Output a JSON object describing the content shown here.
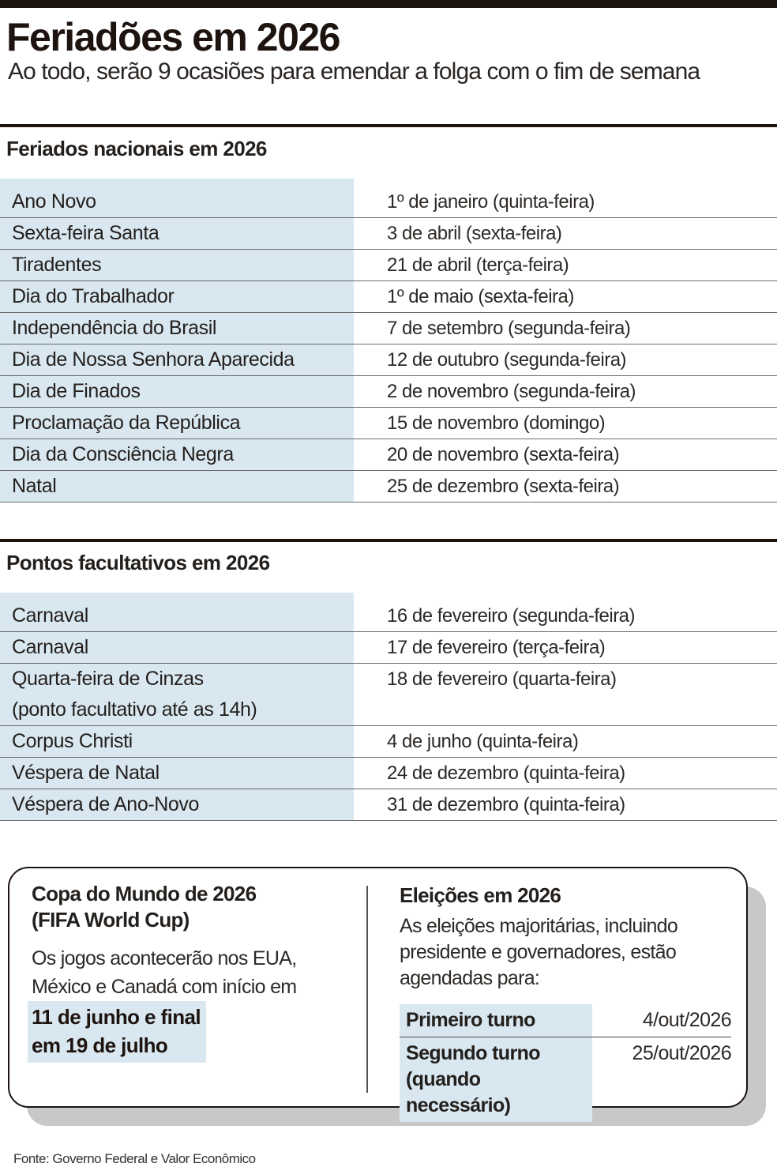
{
  "header": {
    "title": "Feriadões em 2026",
    "subtitle": "Ao todo, serão 9 ocasiões para emendar a folga com o fim de semana"
  },
  "national": {
    "title": "Feriados nacionais em 2026",
    "rows": [
      {
        "name": "Ano Novo",
        "date": "1º de janeiro (quinta-feira)"
      },
      {
        "name": "Sexta-feira Santa",
        "date": "3 de abril (sexta-feira)"
      },
      {
        "name": "Tiradentes",
        "date": "21 de abril (terça-feira)"
      },
      {
        "name": "Dia do Trabalhador",
        "date": "1º de maio (sexta-feira)"
      },
      {
        "name": "Independência do Brasil",
        "date": "7 de setembro (segunda-feira)"
      },
      {
        "name": "Dia de Nossa Senhora Aparecida",
        "date": "12 de outubro (segunda-feira)"
      },
      {
        "name": "Dia de Finados",
        "date": "2 de novembro (segunda-feira)"
      },
      {
        "name": "Proclamação da República",
        "date": "15 de novembro (domingo)"
      },
      {
        "name": "Dia da Consciência Negra",
        "date": "20 de novembro (sexta-feira)"
      },
      {
        "name": "Natal",
        "date": "25 de dezembro (sexta-feira)"
      }
    ]
  },
  "optional": {
    "title": "Pontos facultativos em 2026",
    "rows": [
      {
        "name": "Carnaval",
        "date": "16 de fevereiro (segunda-feira)"
      },
      {
        "name": "Carnaval",
        "date": "17 de fevereiro (terça-feira)"
      },
      {
        "name": "Quarta-feira de Cinzas",
        "name2": "(ponto facultativo até as 14h)",
        "date": "18 de fevereiro (quarta-feira)"
      },
      {
        "name": "Corpus Christi",
        "date": "4 de junho (quinta-feira)"
      },
      {
        "name": "Véspera de Natal",
        "date": "24 de dezembro (quinta-feira)"
      },
      {
        "name": "Véspera de Ano-Novo",
        "date": "31 de dezembro (quinta-feira)"
      }
    ]
  },
  "worldcup": {
    "title_line1": "Copa do Mundo de 2026",
    "title_line2": "(FIFA World Cup)",
    "text_line1": "Os jogos acontecerão nos EUA,",
    "text_line2": "México e Canadá com início em",
    "highlight_line1": "11 de junho e final",
    "highlight_line2": "em 19 de julho"
  },
  "elections": {
    "title": "Eleições em 2026",
    "text_line1": "As eleições majoritárias, incluindo",
    "text_line2": "presidente e governadores, estão",
    "text_line3": "agendadas para:",
    "rows": [
      {
        "name": "Primeiro turno",
        "date": "4/out/2026"
      },
      {
        "name": "Segundo turno",
        "name2": "(quando necessário)",
        "date": "25/out/2026"
      }
    ]
  },
  "source": "Fonte: Governo Federal e Valor Econômico",
  "colors": {
    "highlight": "#d9e7f0",
    "ink": "#1d140f"
  }
}
